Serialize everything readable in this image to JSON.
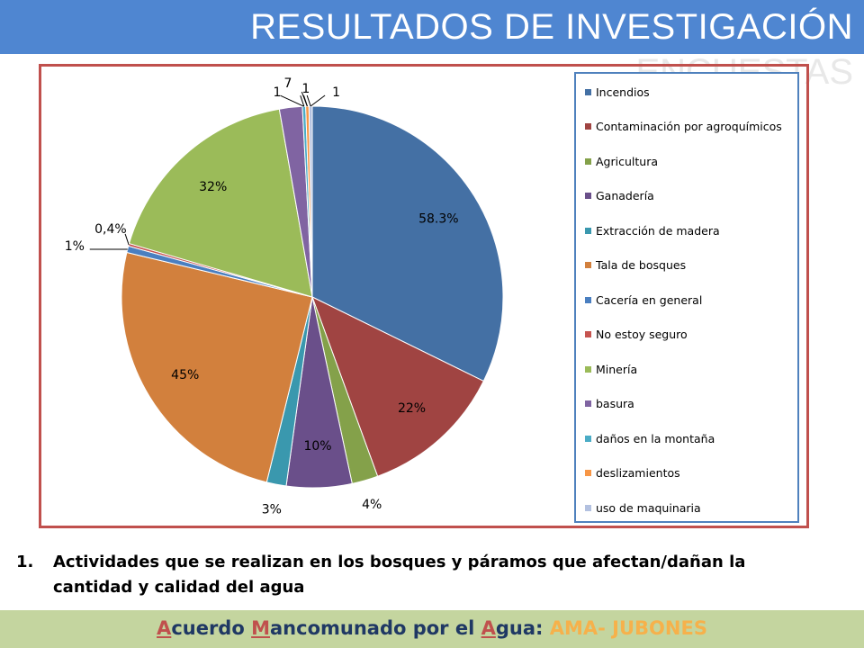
{
  "header": {
    "title": "RESULTADOS DE INVESTIGACIÓN",
    "ghost_text": "ENCUESTAS",
    "bar_color": "#4f86d1"
  },
  "chart_data": {
    "type": "pie",
    "title": "",
    "legend_position": "right",
    "slices": [
      {
        "name": "Incendios",
        "value": 58.3,
        "label": "58.3%",
        "color": "#4470a4"
      },
      {
        "name": "Contaminación  por agroquímicos",
        "value": 22,
        "label": "22%",
        "color": "#a04442"
      },
      {
        "name": "Agricultura",
        "value": 4,
        "label": "4%",
        "color": "#84a14a"
      },
      {
        "name": "Ganadería",
        "value": 10,
        "label": "10%",
        "color": "#6a4f8a"
      },
      {
        "name": "Extracción de madera",
        "value": 3,
        "label": "3%",
        "color": "#3a98ae"
      },
      {
        "name": "Tala de bosques",
        "value": 45,
        "label": "45%",
        "color": "#d2803d"
      },
      {
        "name": "Cacería en general",
        "value": 1,
        "label": "1%",
        "color": "#4a7fc0"
      },
      {
        "name": "No estoy seguro",
        "value": 0.4,
        "label": "0,4%",
        "color": "#c65450"
      },
      {
        "name": "Minería",
        "value": 32,
        "label": "32%",
        "color": "#9bbb59"
      },
      {
        "name": "basura",
        "value": 3.5,
        "label": "7",
        "color": "#8064a2"
      },
      {
        "name": "daños en la montaña",
        "value": 0.5,
        "label": "1",
        "color": "#4bacc6"
      },
      {
        "name": "deslizamientos",
        "value": 0.5,
        "label": "1",
        "color": "#f79646"
      },
      {
        "name": "uso de maquinaria",
        "value": 0.5,
        "label": "1",
        "color": "#b3c1e0"
      }
    ]
  },
  "question": {
    "number": "1.",
    "text": "Actividades que se realizan en los bosques y páramos que afectan/dañan la cantidad y calidad del agua"
  },
  "footer": {
    "part1_initial": "A",
    "part1_rest": "cuerdo ",
    "part2_initial": "M",
    "part2_rest": "ancomunado por el ",
    "part3_initial": "A",
    "part3_rest": "gua: ",
    "brand": "AMA- JUBONES"
  }
}
